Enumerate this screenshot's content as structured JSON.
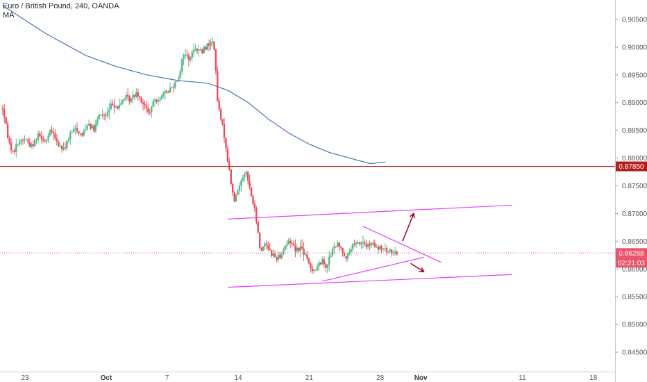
{
  "legend": {
    "symbol_line": "Euro / British Pound, 240, OANDA",
    "indicator": "MA"
  },
  "colors": {
    "up": "#53b987",
    "down": "#eb4d5c",
    "ma": "#4a6fb5",
    "hline": "#b71c1c",
    "trend": "#e040fb",
    "arrow": "#a0001e",
    "axis_text": "#555555",
    "current_price": "#e8546a"
  },
  "chart_data": {
    "type": "candlestick",
    "symbol": "Euro / British Pound",
    "timeframe": "240",
    "source": "OANDA",
    "ylim": [
      0.8415,
      0.9085
    ],
    "y_ticks": [
      "0.84500",
      "0.85000",
      "0.85500",
      "0.86000",
      "0.86500",
      "0.87000",
      "0.87500",
      "0.88000",
      "0.88500",
      "0.89000",
      "0.89500",
      "0.90000",
      "0.90500"
    ],
    "x_ticks": [
      {
        "label": "23",
        "day": 0,
        "bold": false
      },
      {
        "label": "Oct",
        "day": 8,
        "bold": true
      },
      {
        "label": "7",
        "day": 14,
        "bold": false
      },
      {
        "label": "14",
        "day": 21,
        "bold": false
      },
      {
        "label": "21",
        "day": 28,
        "bold": false
      },
      {
        "label": "28",
        "day": 35,
        "bold": false
      },
      {
        "label": "Nov",
        "day": 39,
        "bold": true
      },
      {
        "label": "11",
        "day": 49,
        "bold": false
      },
      {
        "label": "18",
        "day": 56,
        "bold": false
      }
    ],
    "price_tags": [
      {
        "label": "0.87850",
        "value": 0.8785,
        "type": "horizontal_line"
      },
      {
        "label": "0.86288",
        "value": 0.86288,
        "type": "last_price"
      },
      {
        "label": "02:21:03",
        "type": "countdown"
      }
    ],
    "close_path": [
      [
        -2.2,
        0.889
      ],
      [
        -1.6,
        0.883
      ],
      [
        -1.2,
        0.881
      ],
      [
        -0.6,
        0.883
      ],
      [
        0,
        0.8835
      ],
      [
        0.7,
        0.882
      ],
      [
        1.3,
        0.8845
      ],
      [
        2.0,
        0.883
      ],
      [
        2.6,
        0.885
      ],
      [
        3.2,
        0.8825
      ],
      [
        3.8,
        0.8815
      ],
      [
        4.4,
        0.884
      ],
      [
        5.0,
        0.8855
      ],
      [
        5.6,
        0.884
      ],
      [
        6.2,
        0.8865
      ],
      [
        6.8,
        0.885
      ],
      [
        7.4,
        0.888
      ],
      [
        8.0,
        0.8875
      ],
      [
        8.6,
        0.89
      ],
      [
        9.2,
        0.889
      ],
      [
        9.8,
        0.891
      ],
      [
        10.4,
        0.8905
      ],
      [
        11.0,
        0.892
      ],
      [
        11.6,
        0.89
      ],
      [
        12.2,
        0.888
      ],
      [
        12.8,
        0.8905
      ],
      [
        13.4,
        0.891
      ],
      [
        14.0,
        0.892
      ],
      [
        14.6,
        0.893
      ],
      [
        15.2,
        0.895
      ],
      [
        15.6,
        0.899
      ],
      [
        16.2,
        0.898
      ],
      [
        16.8,
        0.9
      ],
      [
        17.4,
        0.899
      ],
      [
        18.0,
        0.9005
      ],
      [
        18.6,
        0.901
      ],
      [
        19.0,
        0.8895
      ],
      [
        19.6,
        0.8845
      ],
      [
        20.1,
        0.878
      ],
      [
        20.6,
        0.872
      ],
      [
        21.2,
        0.8755
      ],
      [
        21.7,
        0.878
      ],
      [
        22.2,
        0.874
      ],
      [
        22.7,
        0.87
      ],
      [
        23.2,
        0.863
      ],
      [
        23.7,
        0.865
      ],
      [
        24.2,
        0.863
      ],
      [
        24.7,
        0.862
      ],
      [
        25.2,
        0.8625
      ],
      [
        25.7,
        0.8645
      ],
      [
        26.2,
        0.865
      ],
      [
        26.7,
        0.8635
      ],
      [
        27.2,
        0.864
      ],
      [
        27.7,
        0.862
      ],
      [
        28.2,
        0.86
      ],
      [
        28.7,
        0.86
      ],
      [
        29.2,
        0.8615
      ],
      [
        29.7,
        0.8605
      ],
      [
        30.2,
        0.863
      ],
      [
        30.7,
        0.8645
      ],
      [
        31.2,
        0.8635
      ],
      [
        31.7,
        0.862
      ],
      [
        32.2,
        0.864
      ],
      [
        32.7,
        0.8645
      ],
      [
        33.2,
        0.865
      ],
      [
        33.7,
        0.864
      ],
      [
        34.2,
        0.8645
      ],
      [
        34.7,
        0.8635
      ],
      [
        35.2,
        0.8638
      ],
      [
        35.7,
        0.863
      ],
      [
        36.2,
        0.8632
      ],
      [
        36.7,
        0.8629
      ]
    ],
    "moving_average": [
      [
        -2.2,
        0.9075
      ],
      [
        2,
        0.9025
      ],
      [
        6,
        0.8985
      ],
      [
        9,
        0.8965
      ],
      [
        12,
        0.895
      ],
      [
        15,
        0.894
      ],
      [
        18,
        0.8935
      ],
      [
        20,
        0.8922
      ],
      [
        22,
        0.89
      ],
      [
        24,
        0.887
      ],
      [
        26,
        0.8845
      ],
      [
        28,
        0.8825
      ],
      [
        30,
        0.881
      ],
      [
        32,
        0.88
      ],
      [
        34,
        0.879
      ],
      [
        35.5,
        0.8793
      ]
    ],
    "horizontal_lines": [
      {
        "value": 0.8785
      }
    ],
    "trendlines": [
      {
        "from": [
          20.0,
          0.869
        ],
        "to": [
          48.0,
          0.8715
        ]
      },
      {
        "from": [
          20.0,
          0.8567
        ],
        "to": [
          48.0,
          0.859
        ]
      },
      {
        "from": [
          33.3,
          0.8677
        ],
        "to": [
          41.0,
          0.8612
        ]
      },
      {
        "from": [
          29.3,
          0.8578
        ],
        "to": [
          39.3,
          0.8621
        ]
      }
    ],
    "arrows": [
      {
        "from": [
          37.2,
          0.865
        ],
        "to": [
          38.3,
          0.87
        ]
      },
      {
        "from": [
          38.0,
          0.861
        ],
        "to": [
          39.3,
          0.8595
        ]
      }
    ]
  }
}
